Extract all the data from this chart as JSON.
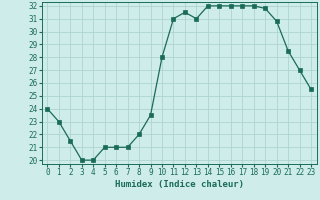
{
  "x": [
    0,
    1,
    2,
    3,
    4,
    5,
    6,
    7,
    8,
    9,
    10,
    11,
    12,
    13,
    14,
    15,
    16,
    17,
    18,
    19,
    20,
    21,
    22,
    23
  ],
  "y": [
    24,
    23,
    21.5,
    20,
    20,
    21,
    21,
    21,
    22,
    23.5,
    28,
    31,
    31.5,
    31,
    32,
    32,
    32,
    32,
    32,
    31.8,
    30.8,
    28.5,
    27,
    25.5
  ],
  "line_color": "#1a6b5a",
  "marker_color": "#1a6b5a",
  "bg_color": "#ceecea",
  "grid_color": "#aed4d2",
  "xlabel": "Humidex (Indice chaleur)",
  "ylim": [
    20,
    32
  ],
  "xlim": [
    -0.5,
    23.5
  ],
  "yticks": [
    20,
    21,
    22,
    23,
    24,
    25,
    26,
    27,
    28,
    29,
    30,
    31,
    32
  ],
  "xticks": [
    0,
    1,
    2,
    3,
    4,
    5,
    6,
    7,
    8,
    9,
    10,
    11,
    12,
    13,
    14,
    15,
    16,
    17,
    18,
    19,
    20,
    21,
    22,
    23
  ],
  "font_color": "#1a6b5a",
  "tick_fontsize": 5.5,
  "label_fontsize": 6.5
}
